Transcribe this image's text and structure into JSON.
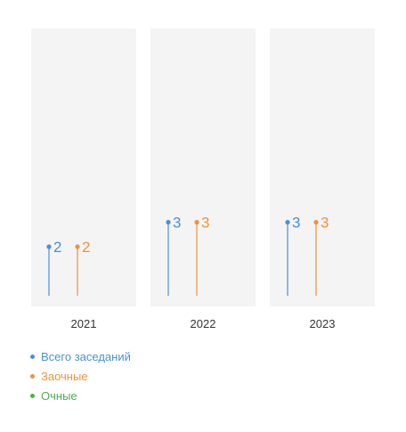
{
  "chart_data": {
    "type": "lollipop",
    "categories": [
      "2021",
      "2022",
      "2023"
    ],
    "series": [
      {
        "name": "Всего заседаний",
        "values": [
          2,
          3,
          3
        ],
        "color": "#4a90d9"
      },
      {
        "name": "Заочные",
        "values": [
          2,
          3,
          3
        ],
        "color": "#f0923a"
      },
      {
        "name": "Очные",
        "values": [
          0,
          0,
          0
        ],
        "color": "#4caf50"
      }
    ],
    "ylim": [
      0,
      7
    ],
    "grid": false,
    "legend_position": "bottom-left",
    "panel_background": "#f4f4f4"
  }
}
